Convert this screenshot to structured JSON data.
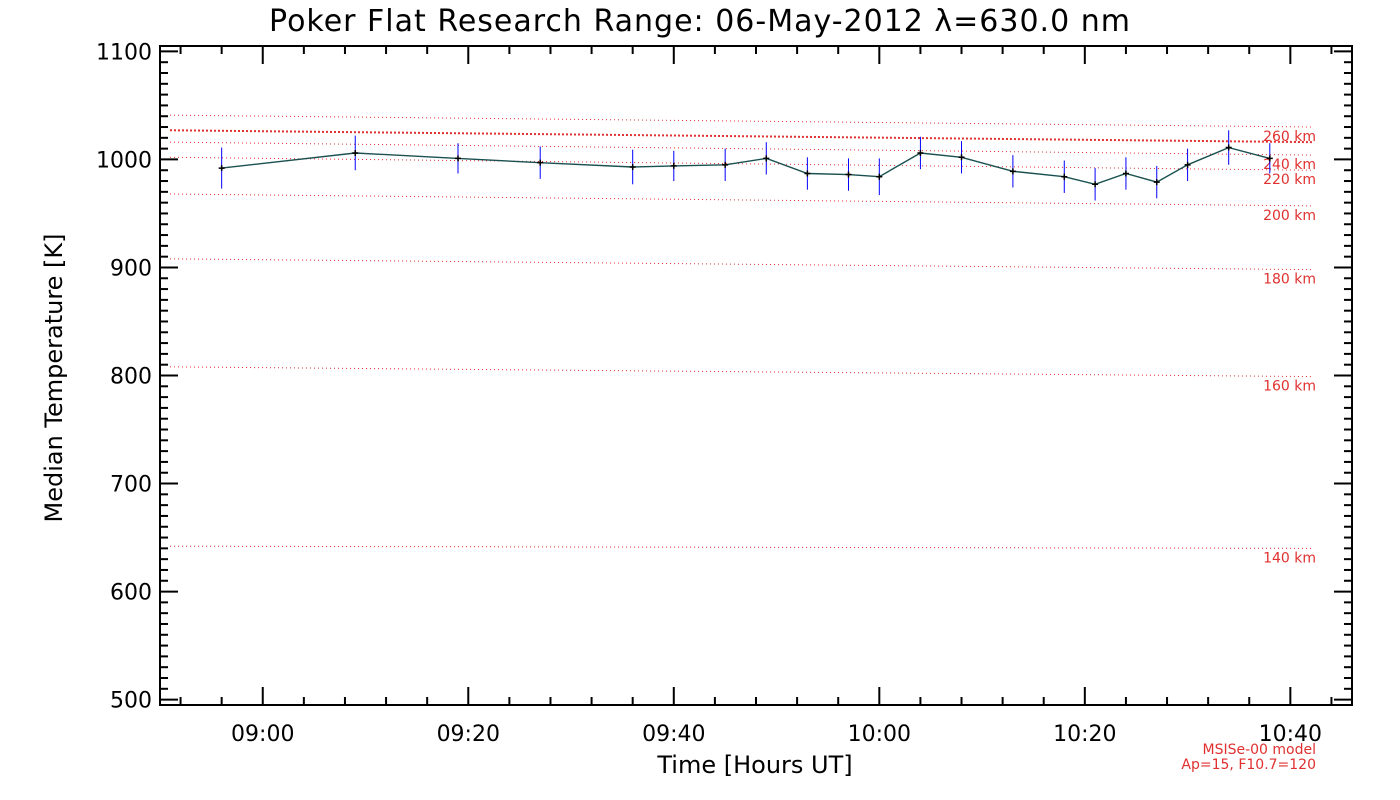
{
  "chart_data": {
    "type": "line",
    "title": "Poker Flat Research Range: 06-May-2012 λ=630.0 nm",
    "xlabel": "Time [Hours UT]",
    "ylabel": "Median Temperature [K]",
    "xlim": [
      "08:50",
      "10:46"
    ],
    "ylim": [
      495,
      1105
    ],
    "x_ticks": [
      "09:00",
      "09:20",
      "09:40",
      "10:00",
      "10:20",
      "10:40"
    ],
    "y_ticks": [
      500,
      600,
      700,
      800,
      900,
      1000,
      1100
    ],
    "grid": false,
    "series": [
      {
        "type": "line-errorbar",
        "color": "#1a5050",
        "errorbar_color": "#0000ff",
        "x": [
          "08:56",
          "09:09",
          "09:19",
          "09:27",
          "09:36",
          "09:40",
          "09:45",
          "09:49",
          "09:53",
          "09:57",
          "10:00",
          "10:04",
          "10:08",
          "10:13",
          "10:18",
          "10:21",
          "10:24",
          "10:27",
          "10:30",
          "10:34",
          "10:38"
        ],
        "y": [
          992,
          1006,
          1001,
          997,
          993,
          994,
          995,
          1001,
          987,
          986,
          984,
          1006,
          1002,
          989,
          984,
          977,
          987,
          979,
          995,
          1011,
          1001
        ],
        "err": [
          19,
          16,
          14,
          15,
          16,
          14,
          15,
          15,
          15,
          15,
          17,
          15,
          15,
          15,
          15,
          15,
          15,
          15,
          15,
          16,
          14
        ]
      }
    ],
    "reference_lines": {
      "color": "#e03030",
      "lines": [
        {
          "label": "140 km",
          "y_start": 642,
          "y_end": 640
        },
        {
          "label": "160 km",
          "y_start": 808,
          "y_end": 799
        },
        {
          "label": "180 km",
          "y_start": 908,
          "y_end": 898
        },
        {
          "label": "200 km",
          "y_start": 968,
          "y_end": 957
        },
        {
          "label": "220 km",
          "y_start": 1002,
          "y_end": 990
        },
        {
          "label": "240 km",
          "y_start": 1016,
          "y_end": 1004
        },
        {
          "label": "260 km",
          "y_start": 1041,
          "y_end": 1030
        },
        {
          "label": "",
          "y_start": 1027,
          "y_end": 1016
        }
      ]
    },
    "annotations": [
      "MSISe-00 model",
      "Ap=15, F10.7=120"
    ]
  }
}
